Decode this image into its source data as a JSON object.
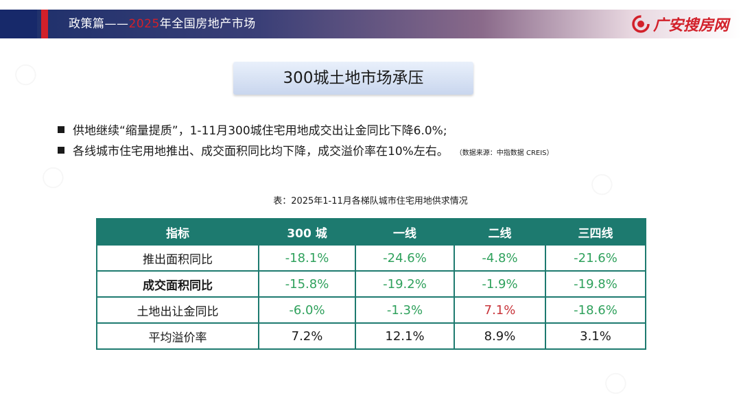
{
  "header": {
    "title_prefix": "政策篇——",
    "title_year": "2025",
    "title_suffix": "年全国房地产市场",
    "brand_name": "广安搜房网"
  },
  "main": {
    "title": "300城土地市场承压",
    "bullets": [
      {
        "text": "供地继续“缩量提质”，1-11月300城住宅用地成交出让金同比下降6.0%;",
        "source": ""
      },
      {
        "text": "各线城市住宅用地推出、成交面积同比均下降，成交溢价率在10%左右。",
        "source": "（数据来源：中指数据 CREIS）"
      }
    ],
    "table_caption": "表：2025年1-11月各梯队城市住宅用地供求情况"
  },
  "table": {
    "headers": [
      "指标",
      "300 城",
      "一线",
      "二线",
      "三四线"
    ],
    "rows": [
      {
        "label": "推出面积同比",
        "values": [
          "-18.1%",
          "-24.6%",
          "-4.8%",
          "-21.6%"
        ]
      },
      {
        "label": "成交面积同比",
        "values": [
          "-15.8%",
          "-19.2%",
          "-1.9%",
          "-19.8%"
        ]
      },
      {
        "label": "土地出让金同比",
        "values": [
          "-6.0%",
          "-1.3%",
          "7.1%",
          "-18.6%"
        ]
      },
      {
        "label": "平均溢价率",
        "values": [
          "7.2%",
          "12.1%",
          "8.9%",
          "3.1%"
        ]
      }
    ]
  },
  "colors": {
    "header_navy": "#17296a",
    "accent_red": "#d2202a",
    "table_teal": "#1d7a6f",
    "negative_green": "#2fa15c",
    "positive_red": "#c8343a"
  },
  "icons": {
    "brand": "fang-logo-icon",
    "bullet": "square-bullet-icon"
  }
}
